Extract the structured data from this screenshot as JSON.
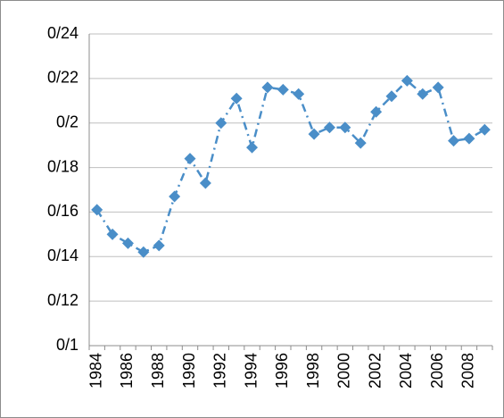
{
  "chart_data": {
    "type": "line",
    "categories": [
      "1984",
      null,
      "1986",
      null,
      "1988",
      null,
      "1990",
      null,
      "1992",
      null,
      "1994",
      null,
      "1996",
      null,
      "1998",
      null,
      "2000",
      null,
      "2002",
      null,
      "2004",
      null,
      "2006",
      null,
      "2008",
      null
    ],
    "series": [
      {
        "color": "#4a8ec8",
        "values": [
          0.161,
          0.15,
          0.146,
          0.142,
          0.145,
          0.167,
          0.184,
          0.173,
          0.2,
          0.211,
          0.189,
          0.216,
          0.215,
          0.213,
          0.195,
          0.198,
          0.198,
          0.191,
          0.205,
          0.212,
          0.219,
          0.213,
          0.216,
          0.192,
          0.193,
          0.197
        ]
      }
    ],
    "ylim": [
      0.1,
      0.24
    ],
    "yticks": [
      {
        "value": 0.1,
        "label": "0/1"
      },
      {
        "value": 0.12,
        "label": "0/12"
      },
      {
        "value": 0.14,
        "label": "0/14"
      },
      {
        "value": 0.16,
        "label": "0/16"
      },
      {
        "value": 0.18,
        "label": "0/18"
      },
      {
        "value": 0.2,
        "label": "0/2"
      },
      {
        "value": 0.22,
        "label": "0/22"
      },
      {
        "value": 0.24,
        "label": "0/24"
      }
    ],
    "grid": true
  }
}
